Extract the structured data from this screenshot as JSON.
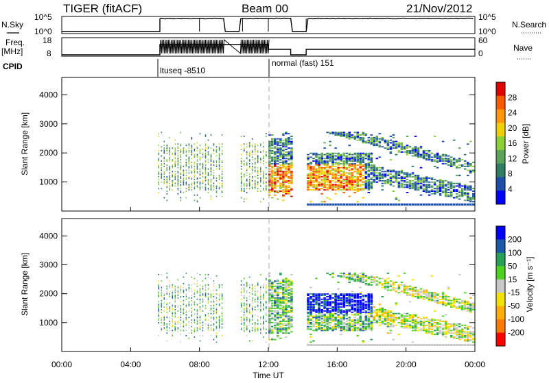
{
  "header": {
    "radar_title": "TIGER (fitACF)",
    "beam": "Beam 00",
    "date": "21/Nov/2012"
  },
  "status_panels": {
    "nsky_label": "N.Sky",
    "nsky_ticks": [
      "10^5",
      "10^0"
    ],
    "nsearch_label": "N.Search",
    "nsearch_ticks": [
      "10^5",
      "10^0"
    ],
    "freq_label_1": "Freq.",
    "freq_label_2": "[MHz]",
    "freq_ticks": [
      "18",
      "8"
    ],
    "nave_label": "Nave",
    "nave_ticks": [
      "60",
      "0"
    ],
    "cpid_label": "CPID",
    "cpid_1": "ltuseq -8510",
    "cpid_2": "normal (fast) 151"
  },
  "colors": {
    "power_scale": [
      "#0000ff",
      "#1e4fa8",
      "#2f7d62",
      "#5ca45a",
      "#8ccf3a",
      "#f0d000",
      "#ff9a00",
      "#ff5a00",
      "#e30000"
    ],
    "velocity_scale": [
      "#ff0000",
      "#ff7a00",
      "#ffb000",
      "#f3e000",
      "#c8c8c8",
      "#50d020",
      "#2aa05a",
      "#1f5aa8",
      "#0000ff"
    ],
    "marker_line": "#a8a8a8"
  },
  "chart_data": [
    {
      "type": "heatmap",
      "title": "Power",
      "xlabel": "Time UT",
      "ylabel": "Slant Range [km]",
      "x_ticks": [
        "00:00",
        "04:00",
        "08:00",
        "12:00",
        "16:00",
        "20:00",
        "00:00"
      ],
      "y_ticks": [
        "1000",
        "2000",
        "3000",
        "4000"
      ],
      "xlim_hours": [
        0,
        24
      ],
      "ylim_km": [
        0,
        4600
      ],
      "colorbar_label": "Power [dB]",
      "colorbar_ticks": [
        "28",
        "24",
        "20",
        "16",
        "12",
        "8",
        "4"
      ],
      "clim": [
        0,
        30
      ],
      "data_gaps_hours": [
        [
          9.4,
          10.3
        ],
        [
          13.3,
          14.2
        ]
      ],
      "cpid_change_hour": 12.0
    },
    {
      "type": "heatmap",
      "title": "Velocity",
      "xlabel": "Time UT",
      "ylabel": "Slant Range [km]",
      "x_ticks": [
        "00:00",
        "04:00",
        "08:00",
        "12:00",
        "16:00",
        "20:00",
        "00:00"
      ],
      "y_ticks": [
        "1000",
        "2000",
        "3000",
        "4000"
      ],
      "xlim_hours": [
        0,
        24
      ],
      "ylim_km": [
        0,
        4600
      ],
      "colorbar_label": "Velocity [m s⁻¹]",
      "colorbar_ticks": [
        "200",
        "100",
        "50",
        "15",
        "-15",
        "-50",
        "-100",
        "-200"
      ],
      "clim": [
        -250,
        250
      ]
    }
  ]
}
